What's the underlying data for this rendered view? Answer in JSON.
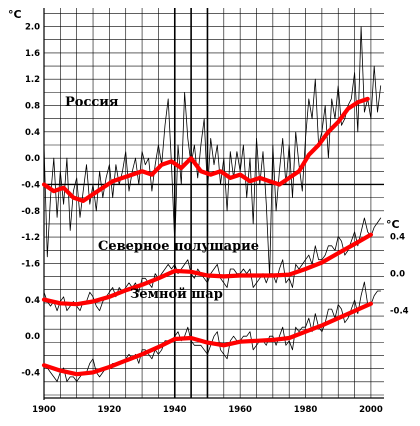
{
  "chart_data": {
    "type": "line",
    "unit_label": "°C",
    "xlim": [
      1900,
      2004
    ],
    "x_ticks": [
      "1900",
      "1920",
      "1940",
      "1960",
      "1980",
      "2000"
    ],
    "grid": true,
    "colors": {
      "annual": "#000000",
      "smoothed": "#ff0000",
      "grid": "#000000"
    },
    "panels": [
      {
        "name": "Россия",
        "axis_side": "left",
        "ylim": [
          -1.7,
          2.1
        ],
        "y_ticks": [
          "2.0",
          "1.6",
          "1.2",
          "0.8",
          "0.4",
          "0.0",
          "-0.4",
          "-0.8",
          "-1.2",
          "-1.6"
        ],
        "series": [
          {
            "type": "annual",
            "x": [
              1900,
              1901,
              1902,
              1903,
              1904,
              1905,
              1906,
              1907,
              1908,
              1909,
              1910,
              1911,
              1912,
              1913,
              1914,
              1915,
              1916,
              1917,
              1918,
              1919,
              1920,
              1921,
              1922,
              1923,
              1924,
              1925,
              1926,
              1927,
              1928,
              1929,
              1930,
              1931,
              1932,
              1933,
              1934,
              1935,
              1936,
              1937,
              1938,
              1939,
              1940,
              1941,
              1942,
              1943,
              1944,
              1945,
              1946,
              1947,
              1948,
              1949,
              1950,
              1951,
              1952,
              1953,
              1954,
              1955,
              1956,
              1957,
              1958,
              1959,
              1960,
              1961,
              1962,
              1963,
              1964,
              1965,
              1966,
              1967,
              1968,
              1969,
              1970,
              1971,
              1972,
              1973,
              1974,
              1975,
              1976,
              1977,
              1978,
              1979,
              1980,
              1981,
              1982,
              1983,
              1984,
              1985,
              1986,
              1987,
              1988,
              1989,
              1990,
              1991,
              1992,
              1993,
              1994,
              1995,
              1996,
              1997,
              1998,
              1999,
              2000,
              2001,
              2002,
              2003
            ],
            "y": [
              0.2,
              -1.5,
              -0.6,
              0.0,
              -0.9,
              -0.2,
              -0.7,
              0.0,
              -1.1,
              -0.5,
              -0.3,
              -0.9,
              -0.5,
              -0.1,
              -0.7,
              -0.4,
              -0.8,
              -0.2,
              -0.6,
              -0.3,
              -0.1,
              -0.6,
              -0.1,
              -0.4,
              -0.2,
              0.1,
              -0.5,
              -0.2,
              0.0,
              -0.4,
              0.1,
              -0.1,
              0.0,
              -0.5,
              -0.1,
              0.2,
              -0.1,
              0.5,
              0.9,
              -0.1,
              -1.3,
              0.2,
              -0.4,
              1.0,
              0.3,
              -0.1,
              0.2,
              -0.3,
              0.2,
              0.6,
              -0.5,
              0.3,
              -0.1,
              0.2,
              -0.4,
              0.0,
              -0.8,
              0.1,
              -0.3,
              0.1,
              -0.2,
              0.2,
              -0.6,
              0.0,
              -1.0,
              0.3,
              -0.4,
              0.1,
              -0.7,
              -1.8,
              0.2,
              -0.8,
              -0.2,
              0.3,
              -0.4,
              0.2,
              -0.6,
              0.4,
              -0.1,
              -0.5,
              0.3,
              0.9,
              0.6,
              1.2,
              0.2,
              0.4,
              0.8,
              0.0,
              0.9,
              0.6,
              1.1,
              0.5,
              0.6,
              0.8,
              0.9,
              1.3,
              0.4,
              2.0,
              0.7,
              0.9,
              0.6,
              1.4,
              0.7,
              1.1
            ]
          },
          {
            "type": "smoothed",
            "x": [
              1900,
              1903,
              1906,
              1909,
              1912,
              1915,
              1918,
              1921,
              1924,
              1927,
              1930,
              1933,
              1936,
              1939,
              1942,
              1945,
              1948,
              1951,
              1954,
              1957,
              1960,
              1963,
              1966,
              1969,
              1972,
              1975,
              1978,
              1981,
              1984,
              1987,
              1990,
              1993,
              1996,
              1999
            ],
            "y": [
              -0.4,
              -0.5,
              -0.45,
              -0.6,
              -0.65,
              -0.55,
              -0.45,
              -0.35,
              -0.3,
              -0.25,
              -0.2,
              -0.25,
              -0.1,
              -0.05,
              -0.15,
              0.0,
              -0.2,
              -0.25,
              -0.2,
              -0.3,
              -0.25,
              -0.35,
              -0.3,
              -0.35,
              -0.4,
              -0.3,
              -0.2,
              0.05,
              0.2,
              0.4,
              0.55,
              0.75,
              0.85,
              0.9
            ]
          }
        ]
      },
      {
        "name": "Северное полушарие",
        "axis_side": "right",
        "ylim": [
          -0.5,
          0.6
        ],
        "y_ticks": [
          "0.4",
          "0.0",
          "-0.4"
        ],
        "series": [
          {
            "type": "annual",
            "x": [
              1900,
              1901,
              1902,
              1903,
              1904,
              1905,
              1906,
              1907,
              1908,
              1909,
              1910,
              1911,
              1912,
              1913,
              1914,
              1915,
              1916,
              1917,
              1918,
              1919,
              1920,
              1921,
              1922,
              1923,
              1924,
              1925,
              1926,
              1927,
              1928,
              1929,
              1930,
              1931,
              1932,
              1933,
              1934,
              1935,
              1936,
              1937,
              1938,
              1939,
              1940,
              1941,
              1942,
              1943,
              1944,
              1945,
              1946,
              1947,
              1948,
              1949,
              1950,
              1951,
              1952,
              1953,
              1954,
              1955,
              1956,
              1957,
              1958,
              1959,
              1960,
              1961,
              1962,
              1963,
              1964,
              1965,
              1966,
              1967,
              1968,
              1969,
              1970,
              1971,
              1972,
              1973,
              1974,
              1975,
              1976,
              1977,
              1978,
              1979,
              1980,
              1981,
              1982,
              1983,
              1984,
              1985,
              1986,
              1987,
              1988,
              1989,
              1990,
              1991,
              1992,
              1993,
              1994,
              1995,
              1996,
              1997,
              1998,
              1999,
              2000,
              2001,
              2002,
              2003
            ],
            "y": [
              -0.2,
              -0.3,
              -0.35,
              -0.3,
              -0.4,
              -0.3,
              -0.25,
              -0.4,
              -0.35,
              -0.3,
              -0.35,
              -0.4,
              -0.3,
              -0.3,
              -0.2,
              -0.25,
              -0.35,
              -0.4,
              -0.3,
              -0.25,
              -0.2,
              -0.15,
              -0.25,
              -0.15,
              -0.2,
              -0.15,
              -0.1,
              -0.15,
              -0.1,
              -0.2,
              -0.05,
              -0.05,
              -0.1,
              -0.15,
              0.0,
              -0.05,
              0.0,
              0.05,
              0.1,
              0.05,
              0.1,
              0.0,
              0.05,
              0.1,
              0.15,
              0.0,
              -0.05,
              0.05,
              0.0,
              -0.05,
              -0.1,
              0.0,
              0.05,
              0.1,
              -0.05,
              -0.1,
              -0.15,
              0.05,
              0.05,
              0.0,
              0.0,
              0.05,
              0.0,
              0.05,
              -0.15,
              -0.1,
              -0.05,
              0.0,
              -0.1,
              0.0,
              0.0,
              -0.1,
              0.05,
              0.15,
              -0.1,
              -0.05,
              -0.15,
              0.1,
              0.05,
              0.1,
              0.15,
              0.2,
              0.1,
              0.3,
              0.15,
              0.15,
              0.2,
              0.3,
              0.3,
              0.25,
              0.4,
              0.35,
              0.2,
              0.25,
              0.35,
              0.45,
              0.3,
              0.45,
              0.6,
              0.45,
              0.4,
              0.5,
              0.55,
              0.6
            ]
          },
          {
            "type": "smoothed",
            "x": [
              1900,
              1905,
              1910,
              1915,
              1920,
              1925,
              1930,
              1935,
              1940,
              1945,
              1950,
              1955,
              1960,
              1965,
              1970,
              1975,
              1980,
              1985,
              1990,
              1995,
              2000
            ],
            "y": [
              -0.28,
              -0.32,
              -0.33,
              -0.3,
              -0.25,
              -0.18,
              -0.12,
              -0.05,
              0.03,
              0.02,
              -0.02,
              -0.03,
              -0.02,
              -0.02,
              -0.02,
              -0.01,
              0.05,
              0.12,
              0.22,
              0.32,
              0.42
            ]
          }
        ]
      },
      {
        "name": "Земной шар",
        "axis_side": "left",
        "ylim": [
          -0.65,
          0.6
        ],
        "y_ticks": [
          "0.4",
          "0.0",
          "-0.4"
        ],
        "series": [
          {
            "type": "annual",
            "x": [
              1900,
              1901,
              1902,
              1903,
              1904,
              1905,
              1906,
              1907,
              1908,
              1909,
              1910,
              1911,
              1912,
              1913,
              1914,
              1915,
              1916,
              1917,
              1918,
              1919,
              1920,
              1921,
              1922,
              1923,
              1924,
              1925,
              1926,
              1927,
              1928,
              1929,
              1930,
              1931,
              1932,
              1933,
              1934,
              1935,
              1936,
              1937,
              1938,
              1939,
              1940,
              1941,
              1942,
              1943,
              1944,
              1945,
              1946,
              1947,
              1948,
              1949,
              1950,
              1951,
              1952,
              1953,
              1954,
              1955,
              1956,
              1957,
              1958,
              1959,
              1960,
              1961,
              1962,
              1963,
              1964,
              1965,
              1966,
              1967,
              1968,
              1969,
              1970,
              1971,
              1972,
              1973,
              1974,
              1975,
              1976,
              1977,
              1978,
              1979,
              1980,
              1981,
              1982,
              1983,
              1984,
              1985,
              1986,
              1987,
              1988,
              1989,
              1990,
              1991,
              1992,
              1993,
              1994,
              1995,
              1996,
              1997,
              1998,
              1999,
              2000,
              2001,
              2002,
              2003
            ],
            "y": [
              -0.3,
              -0.35,
              -0.4,
              -0.45,
              -0.5,
              -0.4,
              -0.35,
              -0.5,
              -0.45,
              -0.45,
              -0.5,
              -0.45,
              -0.4,
              -0.4,
              -0.3,
              -0.25,
              -0.4,
              -0.45,
              -0.4,
              -0.35,
              -0.35,
              -0.3,
              -0.3,
              -0.3,
              -0.3,
              -0.25,
              -0.2,
              -0.25,
              -0.2,
              -0.3,
              -0.15,
              -0.15,
              -0.2,
              -0.25,
              -0.15,
              -0.2,
              -0.15,
              -0.05,
              -0.05,
              -0.05,
              0.0,
              0.05,
              -0.05,
              0.0,
              0.1,
              -0.05,
              -0.1,
              -0.1,
              -0.1,
              -0.15,
              -0.2,
              -0.1,
              0.0,
              0.05,
              -0.15,
              -0.2,
              -0.25,
              -0.05,
              0.0,
              -0.05,
              -0.05,
              0.0,
              0.0,
              0.05,
              -0.15,
              -0.1,
              -0.05,
              -0.05,
              -0.1,
              0.0,
              0.0,
              -0.1,
              0.0,
              0.1,
              -0.1,
              -0.05,
              -0.15,
              0.1,
              0.05,
              0.1,
              0.1,
              0.2,
              0.05,
              0.25,
              0.1,
              0.05,
              0.15,
              0.3,
              0.3,
              0.2,
              0.35,
              0.3,
              0.15,
              0.2,
              0.3,
              0.4,
              0.25,
              0.45,
              0.6,
              0.35,
              0.35,
              0.45,
              0.5,
              0.5
            ]
          },
          {
            "type": "smoothed",
            "x": [
              1900,
              1905,
              1910,
              1915,
              1920,
              1925,
              1930,
              1935,
              1940,
              1945,
              1950,
              1955,
              1960,
              1965,
              1970,
              1975,
              1980,
              1985,
              1990,
              1995,
              2000
            ],
            "y": [
              -0.32,
              -0.38,
              -0.42,
              -0.4,
              -0.34,
              -0.27,
              -0.2,
              -0.12,
              -0.03,
              -0.02,
              -0.07,
              -0.1,
              -0.06,
              -0.05,
              -0.04,
              -0.02,
              0.05,
              0.12,
              0.2,
              0.28,
              0.36
            ]
          }
        ]
      }
    ]
  }
}
